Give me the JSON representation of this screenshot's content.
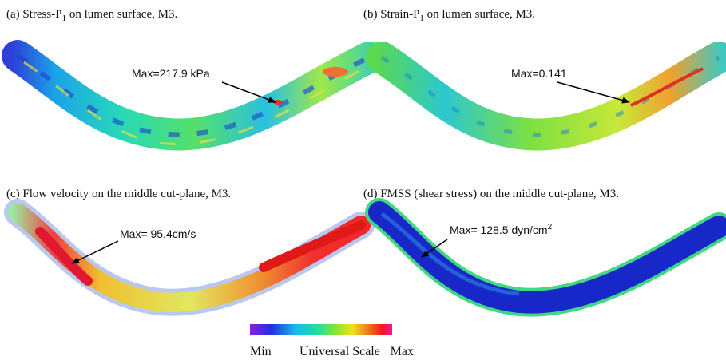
{
  "panels": [
    {
      "caption": {
        "prefix": "(a) Stress-P",
        "sub": "1",
        "suffix": " on lumen surface, M3."
      },
      "annotation": {
        "text": "Max=217.9 kPa"
      }
    },
    {
      "caption": {
        "prefix": "(b) Strain-P",
        "sub": "1",
        "suffix": " on lumen surface, M3."
      },
      "annotation": {
        "text": "Max=0.141"
      }
    },
    {
      "caption": {
        "prefix": "(c)  Flow velocity  on the middle cut-plane, M3."
      },
      "annotation": {
        "text": "Max= 95.4cm/s"
      }
    },
    {
      "caption": {
        "prefix": "(d)  FMSS (shear stress) on the middle  cut-plane, M3."
      },
      "annotation": {
        "text": "Max= 128.5 dyn/cm",
        "sup": "2"
      }
    }
  ],
  "colorbar": {
    "min": "Min",
    "title": "Universal Scale",
    "max": "Max"
  }
}
